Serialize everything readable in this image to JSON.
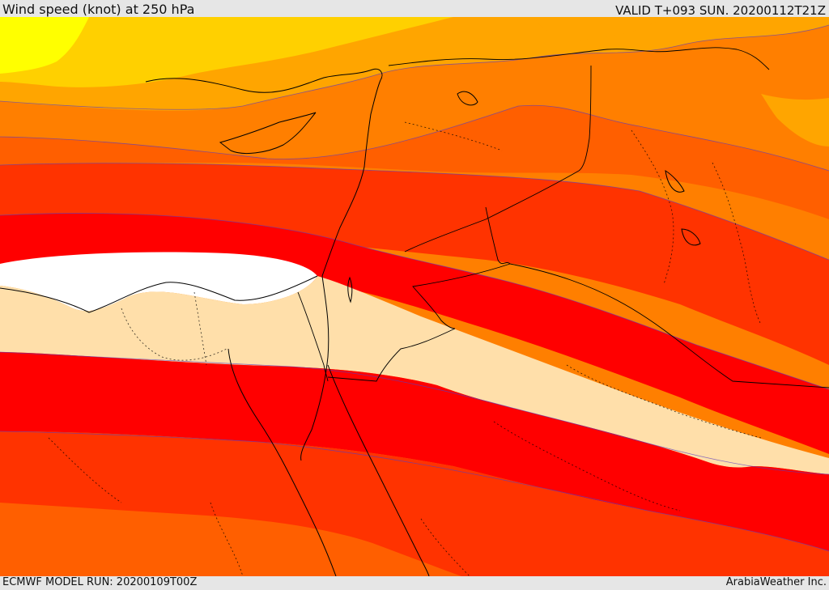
{
  "header": {
    "title": "Wind speed (knot) at 250 hPa",
    "valid_time": "VALID T+093 SUN. 20200112T21Z"
  },
  "footer": {
    "model_run": "ECMWF MODEL RUN: 20200109T00Z",
    "credit": "ArabiaWeather Inc."
  },
  "map": {
    "variable": "wind speed",
    "units": "knot",
    "pressure_level_hPa": 250,
    "colors": {
      "yellow": "#ffff00",
      "gold": "#ffd000",
      "amber": "#ffa500",
      "orange": "#ff7f00",
      "dark_orange": "#ff5f00",
      "red_orange": "#ff3300",
      "red": "#ff0000",
      "pale": "#ffdfaa",
      "white": "#ffffff"
    }
  }
}
